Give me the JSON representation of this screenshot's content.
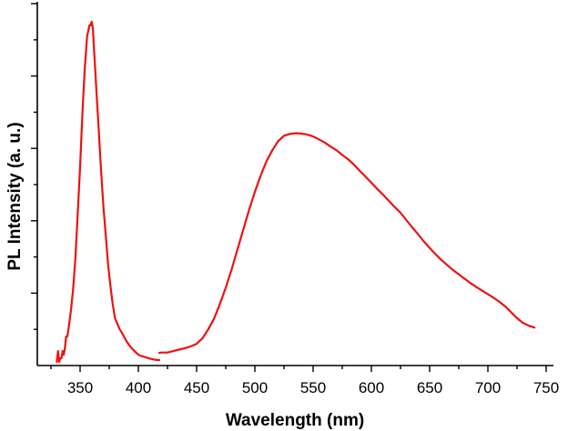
{
  "chart_data": {
    "type": "line",
    "title": "",
    "xlabel": "Wavelength (nm)",
    "ylabel": "PL Intensity (a. u.)",
    "xlim": [
      320,
      750
    ],
    "ylim": [
      0,
      1.0
    ],
    "x_ticks": [
      350,
      400,
      450,
      500,
      550,
      600,
      650,
      700,
      750
    ],
    "x_tick_labels": [
      "350",
      "400",
      "450",
      "500",
      "550",
      "600",
      "650",
      "700",
      "750"
    ],
    "y_ticks": [
      0.2,
      0.4,
      0.6,
      0.8,
      1.0
    ],
    "grid": false,
    "legend": "none",
    "series": [
      {
        "color": "#ee1111",
        "segments": [
          {
            "x": [
              330,
              331,
              332,
              333,
              334,
              335,
              336,
              337,
              338,
              339,
              340,
              342,
              344,
              346,
              348,
              350,
              352,
              354,
              356,
              358,
              359,
              360,
              361,
              362,
              364,
              366,
              368,
              370,
              372,
              374,
              376,
              378,
              380,
              382,
              384,
              386,
              388,
              390,
              392,
              394,
              396,
              398,
              400,
              403,
              406,
              410,
              414,
              418
            ],
            "y": [
              0.01,
              0.04,
              0.01,
              0.02,
              0.02,
              0.04,
              0.03,
              0.05,
              0.08,
              0.08,
              0.1,
              0.15,
              0.21,
              0.3,
              0.42,
              0.55,
              0.7,
              0.82,
              0.91,
              0.94,
              0.94,
              0.95,
              0.93,
              0.87,
              0.76,
              0.65,
              0.54,
              0.44,
              0.36,
              0.28,
              0.22,
              0.17,
              0.13,
              0.115,
              0.1,
              0.09,
              0.078,
              0.066,
              0.057,
              0.049,
              0.042,
              0.036,
              0.03,
              0.026,
              0.023,
              0.019,
              0.016,
              0.015
            ]
          },
          {
            "x": [
              418,
              420,
              425,
              430,
              435,
              440,
              445,
              450,
              455,
              460,
              465,
              470,
              475,
              480,
              485,
              490,
              495,
              500,
              505,
              510,
              515,
              520,
              525,
              530,
              535,
              540,
              545,
              550,
              555,
              560,
              565,
              570,
              575,
              580,
              585,
              590,
              595,
              600,
              605,
              610,
              615,
              620,
              625,
              630,
              635,
              640,
              645,
              650,
              655,
              660,
              665,
              670,
              675,
              680,
              685,
              690,
              695,
              700,
              705,
              710,
              715,
              720,
              725,
              730,
              735,
              740
            ],
            "y": [
              0.035,
              0.036,
              0.036,
              0.04,
              0.044,
              0.048,
              0.053,
              0.06,
              0.075,
              0.1,
              0.13,
              0.17,
              0.215,
              0.265,
              0.32,
              0.375,
              0.43,
              0.48,
              0.525,
              0.565,
              0.595,
              0.62,
              0.635,
              0.64,
              0.642,
              0.641,
              0.638,
              0.633,
              0.625,
              0.616,
              0.605,
              0.595,
              0.582,
              0.57,
              0.555,
              0.538,
              0.522,
              0.505,
              0.488,
              0.472,
              0.455,
              0.438,
              0.422,
              0.402,
              0.382,
              0.363,
              0.343,
              0.325,
              0.308,
              0.292,
              0.278,
              0.264,
              0.252,
              0.24,
              0.228,
              0.217,
              0.207,
              0.197,
              0.187,
              0.176,
              0.163,
              0.147,
              0.131,
              0.118,
              0.11,
              0.105
            ]
          }
        ]
      }
    ]
  }
}
